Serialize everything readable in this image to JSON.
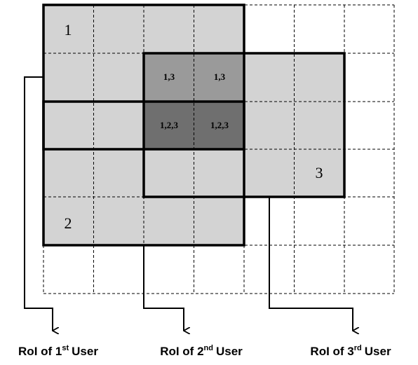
{
  "regions": [
    {
      "label": "1"
    },
    {
      "label": "2"
    },
    {
      "label": "3"
    }
  ],
  "overlaps": [
    "1,3",
    "1,3",
    "1,2,3",
    "1,2,3"
  ],
  "captions": [
    {
      "prefix": "RoI of 1",
      "sup": "st",
      "suffix": "User"
    },
    {
      "prefix": "RoI of 2",
      "sup": "nd",
      "suffix": "User"
    },
    {
      "prefix": "RoI of 3",
      "sup": "rd",
      "suffix": "User"
    }
  ]
}
